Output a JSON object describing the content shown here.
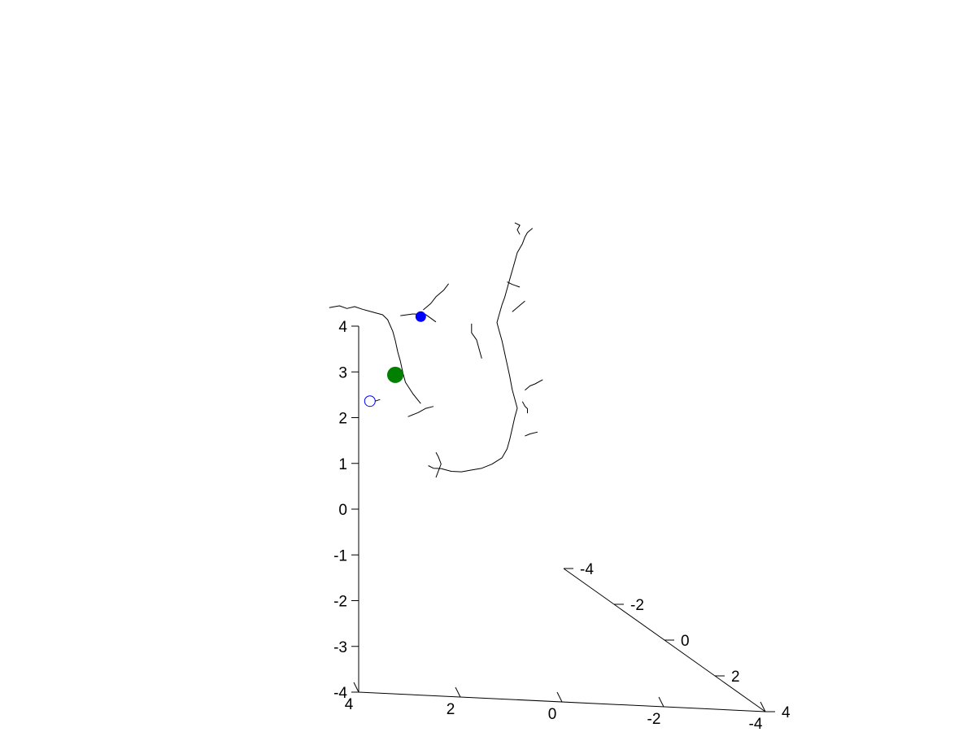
{
  "chart_data": {
    "type": "line",
    "projection": "3d",
    "title": "",
    "xlabel": "",
    "ylabel": "",
    "zlabel": "",
    "grid": false,
    "axes": {
      "x": {
        "range": [
          4,
          -4
        ],
        "ticks": [
          {
            "value": 4,
            "label": "4"
          },
          {
            "value": 2,
            "label": "2"
          },
          {
            "value": 0,
            "label": "0"
          },
          {
            "value": -2,
            "label": "-2"
          },
          {
            "value": -4,
            "label": "-4"
          }
        ]
      },
      "y": {
        "range": [
          4,
          -4
        ],
        "ticks": [
          {
            "value": 4,
            "label": "4"
          },
          {
            "value": 2,
            "label": "2"
          },
          {
            "value": 0,
            "label": "0"
          },
          {
            "value": -2,
            "label": "-2"
          },
          {
            "value": -4,
            "label": "-4"
          }
        ]
      },
      "z": {
        "range": [
          -4,
          4
        ],
        "ticks": [
          {
            "value": 4,
            "label": "4"
          },
          {
            "value": 3,
            "label": "3"
          },
          {
            "value": 2,
            "label": "2"
          },
          {
            "value": 1,
            "label": "1"
          },
          {
            "value": 0,
            "label": "0"
          },
          {
            "value": -1,
            "label": "-1"
          },
          {
            "value": -2,
            "label": "-2"
          },
          {
            "value": -3,
            "label": "-3"
          },
          {
            "value": -4,
            "label": "-4"
          }
        ]
      }
    },
    "series": [
      {
        "kind": "trace",
        "color": "#000000",
        "segments": [
          [
            [
              -1.9,
              -1.0,
              4.5
            ],
            [
              -1.8,
              -1.0,
              4.4
            ],
            [
              -1.75,
              -1.0,
              4.3
            ],
            [
              -1.7,
              -1.0,
              4.15
            ],
            [
              -1.6,
              -1.0,
              3.95
            ],
            [
              -1.55,
              -1.0,
              3.75
            ],
            [
              -1.5,
              -1.0,
              3.55
            ],
            [
              -1.45,
              -1.0,
              3.35
            ],
            [
              -1.4,
              -1.0,
              3.15
            ],
            [
              -1.35,
              -1.0,
              2.95
            ],
            [
              -1.3,
              -1.0,
              2.8
            ],
            [
              -1.25,
              -1.0,
              2.6
            ],
            [
              -1.2,
              -1.0,
              2.4
            ],
            [
              -1.25,
              -1.0,
              2.2
            ],
            [
              -1.3,
              -1.0,
              2.0
            ],
            [
              -1.35,
              -1.0,
              1.75
            ],
            [
              -1.4,
              -1.0,
              1.5
            ],
            [
              -1.45,
              -1.0,
              1.25
            ],
            [
              -1.5,
              -1.0,
              0.95
            ],
            [
              -1.55,
              -1.0,
              0.75
            ],
            [
              -1.6,
              -1.0,
              0.55
            ],
            [
              -1.55,
              -1.0,
              0.35
            ],
            [
              -1.5,
              -1.0,
              0.1
            ],
            [
              -1.45,
              -1.0,
              -0.15
            ],
            [
              -1.4,
              -1.0,
              -0.35
            ],
            [
              -1.3,
              -1.0,
              -0.55
            ],
            [
              -1.1,
              -1.0,
              -0.7
            ],
            [
              -0.9,
              -1.0,
              -0.8
            ],
            [
              -0.7,
              -1.0,
              -0.85
            ],
            [
              -0.5,
              -1.0,
              -0.9
            ],
            [
              -0.3,
              -1.0,
              -0.9
            ],
            [
              -0.1,
              -1.0,
              -0.85
            ]
          ],
          [
            [
              0.3,
              -1.0,
              0.55
            ],
            [
              0.45,
              -1.0,
              0.75
            ],
            [
              0.6,
              -1.0,
              1.0
            ],
            [
              0.65,
              -1.0,
              1.2
            ],
            [
              0.7,
              -1.0,
              1.45
            ],
            [
              0.75,
              -1.0,
              1.65
            ],
            [
              0.8,
              -1.0,
              1.9
            ],
            [
              0.85,
              -1.0,
              2.1
            ],
            [
              0.95,
              -1.0,
              2.35
            ],
            [
              1.05,
              -1.0,
              2.45
            ],
            [
              1.25,
              -1.0,
              2.5
            ],
            [
              1.45,
              -1.0,
              2.55
            ],
            [
              1.6,
              -1.0,
              2.6
            ],
            [
              1.75,
              -1.0,
              2.55
            ],
            [
              1.9,
              -1.0,
              2.6
            ],
            [
              2.1,
              -1.0,
              2.55
            ]
          ],
          [
            [
              0.0,
              -1.0,
              2.35
            ],
            [
              0.2,
              -1.0,
              2.5
            ],
            [
              0.45,
              -1.0,
              2.5
            ],
            [
              0.7,
              -1.0,
              2.45
            ]
          ],
          [
            [
              -0.25,
              -1.0,
              3.2
            ],
            [
              -0.15,
              -1.0,
              3.05
            ],
            [
              0.0,
              -1.0,
              2.9
            ],
            [
              0.1,
              -1.0,
              2.75
            ],
            [
              0.25,
              -1.0,
              2.6
            ]
          ],
          [
            [
              -1.55,
              -1.0,
              4.6
            ],
            [
              -1.65,
              -1.0,
              4.55
            ],
            [
              -1.6,
              -1.0,
              4.45
            ],
            [
              -1.65,
              -1.0,
              4.35
            ]
          ],
          [
            [
              -1.65,
              -1.0,
              3.2
            ],
            [
              -1.5,
              -1.0,
              3.25
            ],
            [
              -1.4,
              -1.0,
              3.3
            ]
          ],
          [
            [
              -1.75,
              -1.0,
              2.9
            ],
            [
              -1.6,
              -1.0,
              2.75
            ],
            [
              -1.5,
              -1.0,
              2.65
            ]
          ],
          [
            [
              -0.7,
              -1.0,
              2.35
            ],
            [
              -0.7,
              -1.0,
              2.15
            ],
            [
              -0.8,
              -1.0,
              2.0
            ],
            [
              -0.85,
              -1.0,
              1.8
            ],
            [
              -0.9,
              -1.0,
              1.6
            ]
          ],
          [
            [
              0.55,
              -1.0,
              0.25
            ],
            [
              0.35,
              -1.0,
              0.35
            ],
            [
              0.2,
              -1.0,
              0.45
            ],
            [
              0.05,
              -1.0,
              0.5
            ]
          ],
          [
            [
              0.0,
              -1.0,
              -0.5
            ],
            [
              -0.05,
              -1.0,
              -0.6
            ],
            [
              -0.1,
              -1.0,
              -0.75
            ],
            [
              -0.05,
              -1.0,
              -0.9
            ],
            [
              0.0,
              -1.0,
              -1.05
            ]
          ],
          [
            [
              0.15,
              -1.0,
              -0.8
            ],
            [
              0.05,
              -1.0,
              -0.85
            ],
            [
              -0.1,
              -1.0,
              -0.85
            ]
          ],
          [
            [
              -1.7,
              -1.0,
              0.7
            ],
            [
              -1.75,
              -1.0,
              0.6
            ],
            [
              -1.8,
              -1.0,
              0.55
            ],
            [
              -1.8,
              -1.0,
              0.45
            ]
          ],
          [
            [
              -2.1,
              -1.0,
              1.2
            ],
            [
              -1.95,
              -1.0,
              1.1
            ],
            [
              -1.85,
              -1.0,
              1.05
            ],
            [
              -1.75,
              -1.0,
              0.95
            ]
          ],
          [
            [
              -2.0,
              -1.0,
              0.05
            ],
            [
              -1.85,
              -1.0,
              0.0
            ],
            [
              -1.75,
              -1.0,
              -0.05
            ]
          ]
        ]
      },
      {
        "kind": "marker",
        "style": "filled-circle",
        "color": "#0000ff",
        "size": "medium",
        "point": [
          0.3,
          -1.0,
          2.45
        ]
      },
      {
        "kind": "marker",
        "style": "filled-circle",
        "color": "#007f00",
        "size": "large",
        "point": [
          0.8,
          -1.0,
          1.15
        ]
      },
      {
        "kind": "marker",
        "style": "open-circle",
        "color": "#0000ff",
        "size": "medium",
        "point": [
          1.3,
          -1.0,
          0.55
        ]
      }
    ]
  }
}
